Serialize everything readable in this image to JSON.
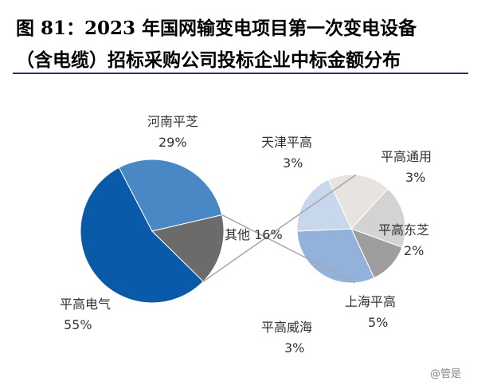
{
  "title_line_1": "图 81：2023 年国网输变电项目第一次变电设备",
  "title_line_2": "（含电缆）招标采购公司投标企业中标金额分布",
  "watermark": "@管是",
  "colors": {
    "title_rule": "#1f3864",
    "connector": "#a6a6a6"
  },
  "chart_data": [
    {
      "type": "pie",
      "title": "图 81：2023 年国网输变电项目第一次变电设备（含电缆）招标采购公司投标企业中标金额分布",
      "slices": [
        {
          "label": "平高电气",
          "value": 55,
          "display": "55%",
          "color": "#0a5aaa"
        },
        {
          "label": "河南平芝",
          "value": 29,
          "display": "29%",
          "color": "#4a88c5"
        },
        {
          "label": "其他",
          "value": 16,
          "display": "16%",
          "color": "#6b6b6b"
        }
      ]
    },
    {
      "type": "pie",
      "title": "",
      "breakdown_of": "其他",
      "slices": [
        {
          "label": "天津平高",
          "value": 3,
          "display": "3%",
          "color": "#e7e4e0"
        },
        {
          "label": "平高通用",
          "value": 3,
          "display": "3%",
          "color": "#d3d3d3"
        },
        {
          "label": "平高东芝",
          "value": 2,
          "display": "2%",
          "color": "#9e9e9e"
        },
        {
          "label": "上海平高",
          "value": 5,
          "display": "5%",
          "color": "#92b2dc"
        },
        {
          "label": "平高威海",
          "value": 3,
          "display": "3%",
          "color": "#c7d8ec"
        }
      ]
    }
  ]
}
